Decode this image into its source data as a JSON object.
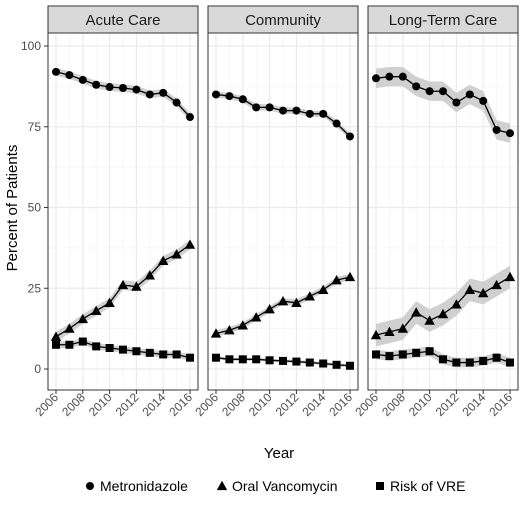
{
  "chart_data": {
    "type": "line",
    "facet_by": "setting",
    "ylabel": "Percent of Patients",
    "xlabel": "Year",
    "ylim": [
      0,
      100
    ],
    "y_ticks": [
      0,
      25,
      50,
      75,
      100
    ],
    "xlim": [
      2006,
      2016
    ],
    "x_ticks": [
      2006,
      2008,
      2010,
      2012,
      2014,
      2016
    ],
    "years": [
      2006,
      2007,
      2008,
      2009,
      2010,
      2011,
      2012,
      2013,
      2014,
      2015,
      2016
    ],
    "confidence_band": true,
    "grid": true,
    "legend_position": "bottom",
    "legend": [
      {
        "name": "Metronidazole",
        "marker": "circle"
      },
      {
        "name": "Oral Vancomycin",
        "marker": "triangle"
      },
      {
        "name": "Risk of VRE",
        "marker": "square"
      }
    ],
    "facets": [
      {
        "title": "Acute Care",
        "series": [
          {
            "name": "Metronidazole",
            "marker": "circle",
            "values": [
              92,
              91,
              89.5,
              88,
              87.3,
              87,
              86.5,
              85,
              85.5,
              82.5,
              78
            ],
            "band": 1.2
          },
          {
            "name": "Oral Vancomycin",
            "marker": "triangle",
            "values": [
              10,
              12.5,
              15.5,
              18,
              20.5,
              26,
              25.5,
              29,
              33.5,
              35.5,
              38.5
            ],
            "band": 1.5
          },
          {
            "name": "Risk of VRE",
            "marker": "square",
            "values": [
              7.5,
              7.5,
              8.5,
              7,
              6.5,
              6,
              5.5,
              5,
              4.5,
              4.5,
              3.5
            ],
            "band": 1
          }
        ]
      },
      {
        "title": "Community",
        "series": [
          {
            "name": "Metronidazole",
            "marker": "circle",
            "values": [
              85,
              84.5,
              83.5,
              81,
              81,
              80,
              80,
              79,
              79,
              76,
              72
            ],
            "band": 1
          },
          {
            "name": "Oral Vancomycin",
            "marker": "triangle",
            "values": [
              11,
              12,
              13.5,
              16,
              18.5,
              21,
              20.5,
              22.5,
              24.5,
              27.5,
              28.5
            ],
            "band": 1
          },
          {
            "name": "Risk of VRE",
            "marker": "square",
            "values": [
              3.5,
              3,
              3,
              3,
              2.7,
              2.5,
              2.3,
              2,
              1.7,
              1.3,
              1
            ],
            "band": 0.5
          }
        ]
      },
      {
        "title": "Long-Term Care",
        "series": [
          {
            "name": "Metronidazole",
            "marker": "circle",
            "values": [
              90,
              90.5,
              90.5,
              87.5,
              86,
              86,
              82.5,
              85,
              83,
              74,
              73
            ],
            "band": 3
          },
          {
            "name": "Oral Vancomycin",
            "marker": "triangle",
            "values": [
              10.5,
              11.5,
              12.5,
              17.5,
              15,
              17,
              20,
              24.5,
              23.5,
              26,
              28.5
            ],
            "band": 3.5
          },
          {
            "name": "Risk of VRE",
            "marker": "square",
            "values": [
              4.5,
              4,
              4.5,
              5,
              5.5,
              3,
              2,
              2,
              2.5,
              3.5,
              2
            ],
            "band": 1.5
          }
        ]
      }
    ]
  },
  "colors": {
    "line": "#000000",
    "band": "#c8c8c8",
    "strip_fill": "#d9d9d9",
    "strip_border": "#333333",
    "grid_major": "#ebebeb",
    "grid_minor": "#f5f5f5",
    "panel_border": "#333333"
  }
}
